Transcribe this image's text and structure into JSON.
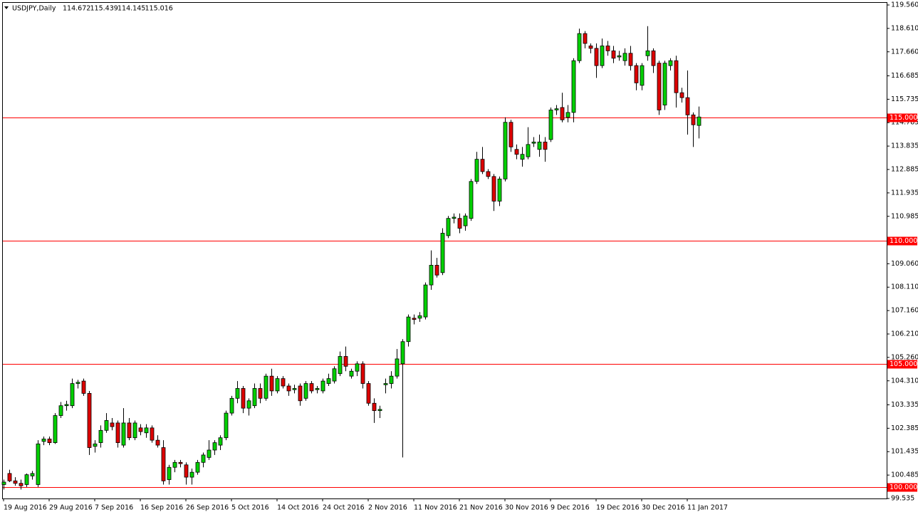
{
  "chart_data": {
    "type": "candlestick",
    "title": "USDJPY,Daily",
    "header_ohlc": [
      114.672,
      115.439,
      114.145,
      115.016
    ],
    "up_color": "#00d000",
    "down_color": "#dd0000",
    "hline_color": "#ff0000",
    "grid": false,
    "ylim": [
      99.535,
      119.56
    ],
    "yticks": [
      {
        "value": 119.56,
        "label": "119.560"
      },
      {
        "value": 118.61,
        "label": "118.610"
      },
      {
        "value": 117.66,
        "label": "117.660"
      },
      {
        "value": 116.685,
        "label": "116.685"
      },
      {
        "value": 115.735,
        "label": "115.735"
      },
      {
        "value": 114.785,
        "label": "114.785"
      },
      {
        "value": 113.835,
        "label": "113.835"
      },
      {
        "value": 112.885,
        "label": "112.885"
      },
      {
        "value": 111.935,
        "label": "111.935"
      },
      {
        "value": 110.985,
        "label": "110.985"
      },
      {
        "value": 109.06,
        "label": "109.060"
      },
      {
        "value": 108.11,
        "label": "108.110"
      },
      {
        "value": 107.16,
        "label": "107.160"
      },
      {
        "value": 106.21,
        "label": "106.210"
      },
      {
        "value": 105.26,
        "label": "105.260"
      },
      {
        "value": 104.31,
        "label": "104.310"
      },
      {
        "value": 103.335,
        "label": "103.335"
      },
      {
        "value": 102.385,
        "label": "102.385"
      },
      {
        "value": 101.435,
        "label": "101.435"
      },
      {
        "value": 100.485,
        "label": "100.485"
      },
      {
        "value": 99.535,
        "label": "99.535"
      }
    ],
    "hlines": [
      {
        "value": 115,
        "label": "115.000"
      },
      {
        "value": 110,
        "label": "110.000"
      },
      {
        "value": 105,
        "label": "105.000"
      },
      {
        "value": 100,
        "label": "100.000"
      }
    ],
    "categories": [
      "19 Aug 2016",
      null,
      null,
      null,
      null,
      null,
      null,
      null,
      "29 Aug 2016",
      null,
      null,
      null,
      null,
      null,
      null,
      null,
      "7 Sep 2016",
      null,
      null,
      null,
      null,
      null,
      null,
      null,
      "16 Sep 2016",
      null,
      null,
      null,
      null,
      null,
      null,
      null,
      "26 Sep 2016",
      null,
      null,
      null,
      null,
      null,
      null,
      null,
      "5 Oct 2016",
      null,
      null,
      null,
      null,
      null,
      null,
      null,
      "14 Oct 2016",
      null,
      null,
      null,
      null,
      null,
      null,
      null,
      "24 Oct 2016",
      null,
      null,
      null,
      null,
      null,
      null,
      null,
      "2 Nov 2016",
      null,
      null,
      null,
      null,
      null,
      null,
      null,
      "11 Nov 2016",
      null,
      null,
      null,
      null,
      null,
      null,
      null,
      "21 Nov 2016",
      null,
      null,
      null,
      null,
      null,
      null,
      null,
      "30 Nov 2016",
      null,
      null,
      null,
      null,
      null,
      null,
      null,
      "9 Dec 2016",
      null,
      null,
      null,
      null,
      null,
      null,
      null,
      "19 Dec 2016",
      null,
      null,
      null,
      null,
      null,
      null,
      null,
      "30 Dec 2016",
      null,
      null,
      null,
      null,
      null,
      null,
      null,
      "11 Jan 2017",
      null,
      null
    ],
    "open": [
      100.1,
      100.55,
      100.25,
      100.15,
      100.1,
      100.45,
      100.1,
      101.85,
      101.95,
      101.8,
      102.9,
      103.3,
      103.3,
      104.2,
      104.3,
      103.8,
      101.65,
      101.8,
      102.3,
      102.6,
      102.6,
      101.7,
      102.6,
      102.0,
      102.4,
      102.2,
      102.4,
      101.9,
      101.6,
      100.3,
      100.8,
      101.0,
      100.9,
      100.4,
      100.6,
      101.0,
      101.2,
      101.5,
      101.7,
      102.0,
      103.0,
      103.6,
      104.0,
      103.2,
      103.3,
      104.0,
      103.6,
      104.5,
      103.9,
      104.4,
      104.1,
      103.95,
      104.1,
      103.6,
      104.2,
      103.95,
      103.9,
      104.2,
      104.3,
      104.6,
      105.3,
      104.5,
      104.7,
      105.0,
      104.2,
      103.4,
      103.1,
      104.15,
      104.2,
      104.5,
      105.0,
      105.9,
      106.85,
      106.85,
      106.9,
      108.2,
      109.0,
      108.7,
      110.2,
      110.9,
      110.9,
      110.6,
      110.9,
      112.4,
      113.3,
      112.8,
      112.6,
      111.6,
      112.5,
      114.8,
      113.7,
      113.3,
      113.4,
      113.95,
      113.7,
      114.0,
      114.1,
      115.3,
      115.4,
      115.0,
      115.2,
      117.3,
      118.4,
      117.9,
      117.8,
      117.1,
      117.9,
      117.7,
      117.45,
      117.3,
      117.6,
      117.1,
      116.3,
      117.5,
      117.7,
      117.2,
      115.5,
      117.1,
      117.3,
      116.0,
      115.8,
      115.1,
      114.672
    ],
    "high": [
      100.3,
      100.7,
      100.4,
      100.3,
      100.55,
      100.65,
      101.9,
      102.05,
      102.05,
      103.0,
      103.45,
      103.5,
      104.4,
      104.35,
      104.4,
      103.9,
      101.9,
      102.5,
      103.0,
      102.8,
      102.7,
      103.2,
      102.8,
      102.7,
      102.55,
      102.55,
      102.5,
      102.1,
      101.9,
      100.9,
      101.1,
      101.1,
      101.0,
      100.75,
      101.1,
      101.4,
      101.9,
      101.9,
      102.1,
      103.1,
      103.7,
      104.3,
      104.1,
      103.6,
      104.2,
      104.2,
      104.6,
      104.8,
      104.5,
      104.5,
      104.2,
      104.15,
      104.2,
      104.3,
      104.3,
      104.1,
      104.4,
      104.6,
      104.9,
      105.5,
      105.7,
      104.8,
      105.1,
      105.1,
      104.3,
      103.6,
      103.3,
      104.4,
      104.7,
      105.6,
      106.0,
      107.0,
      107.0,
      107.1,
      108.3,
      109.6,
      109.3,
      110.5,
      111.0,
      111.1,
      111.1,
      111.1,
      112.5,
      113.6,
      113.8,
      112.9,
      112.7,
      112.6,
      115.0,
      114.9,
      113.9,
      113.8,
      114.6,
      114.2,
      114.3,
      114.2,
      115.4,
      115.5,
      116.0,
      115.5,
      117.4,
      118.6,
      118.5,
      118.0,
      118.0,
      118.2,
      118.1,
      117.9,
      117.7,
      117.8,
      117.9,
      117.2,
      117.2,
      118.7,
      117.8,
      117.3,
      117.3,
      117.4,
      117.5,
      116.2,
      116.9,
      115.2,
      115.439
    ],
    "low": [
      99.9,
      100.2,
      100.05,
      99.9,
      100.0,
      100.3,
      100.0,
      101.7,
      101.7,
      101.75,
      102.8,
      103.1,
      103.2,
      104.0,
      103.7,
      101.3,
      101.4,
      101.6,
      102.2,
      102.3,
      101.6,
      101.6,
      101.9,
      101.9,
      102.1,
      102.0,
      101.8,
      101.6,
      100.1,
      100.1,
      100.6,
      100.8,
      100.1,
      100.1,
      100.5,
      100.8,
      101.1,
      101.3,
      101.5,
      101.9,
      102.9,
      103.4,
      103.0,
      102.9,
      103.2,
      103.4,
      103.5,
      103.7,
      103.8,
      104.0,
      103.7,
      103.8,
      103.3,
      103.5,
      103.8,
      103.8,
      103.8,
      104.1,
      104.2,
      104.5,
      104.7,
      104.4,
      104.5,
      104.0,
      103.3,
      102.6,
      102.8,
      103.8,
      104.0,
      104.4,
      101.2,
      105.7,
      106.6,
      106.7,
      106.8,
      108.0,
      108.5,
      108.6,
      110.1,
      110.7,
      110.3,
      110.4,
      110.8,
      112.3,
      112.7,
      112.5,
      111.2,
      111.4,
      112.4,
      113.6,
      113.3,
      113.0,
      113.3,
      113.8,
      113.4,
      113.2,
      114.0,
      115.1,
      114.8,
      114.8,
      114.8,
      117.2,
      117.8,
      117.6,
      116.6,
      117.0,
      117.5,
      117.2,
      117.3,
      117.1,
      116.9,
      116.1,
      116.1,
      117.3,
      116.8,
      115.1,
      115.3,
      116.9,
      115.4,
      115.6,
      114.3,
      113.8,
      114.145
    ],
    "close": [
      100.2,
      100.25,
      100.15,
      100.05,
      100.5,
      100.55,
      101.75,
      101.95,
      101.8,
      102.9,
      103.3,
      103.35,
      104.2,
      104.25,
      103.8,
      101.6,
      101.75,
      102.3,
      102.7,
      102.45,
      101.8,
      102.6,
      102.0,
      102.6,
      102.25,
      102.4,
      101.9,
      101.7,
      100.25,
      100.8,
      101.0,
      100.95,
      100.4,
      100.6,
      101.0,
      101.3,
      101.5,
      101.8,
      102.0,
      103.0,
      103.6,
      104.0,
      103.2,
      103.5,
      104.0,
      103.6,
      104.5,
      103.9,
      104.4,
      104.1,
      103.9,
      104.0,
      103.5,
      104.2,
      103.9,
      104.0,
      104.3,
      104.4,
      104.8,
      105.3,
      104.9,
      104.7,
      105.0,
      104.2,
      103.4,
      103.1,
      103.15,
      104.2,
      104.5,
      105.2,
      105.9,
      106.9,
      106.8,
      106.95,
      108.2,
      109.0,
      108.6,
      110.3,
      110.9,
      110.95,
      110.5,
      111.0,
      112.4,
      113.3,
      112.8,
      112.6,
      111.6,
      112.5,
      114.8,
      113.8,
      113.5,
      113.5,
      113.9,
      114.0,
      114.0,
      113.7,
      115.3,
      115.35,
      114.9,
      115.2,
      117.3,
      118.4,
      118.0,
      117.8,
      117.1,
      117.9,
      117.7,
      117.4,
      117.5,
      117.6,
      117.1,
      116.4,
      117.1,
      117.7,
      117.1,
      115.3,
      117.2,
      117.3,
      116.0,
      115.8,
      115.1,
      114.7,
      115.016
    ]
  }
}
